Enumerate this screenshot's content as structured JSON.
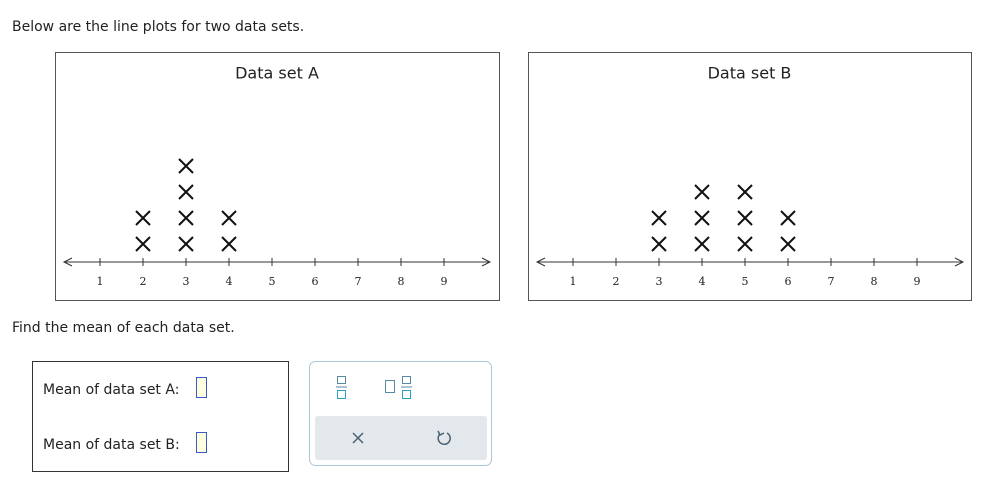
{
  "intro": "Below are the line plots for two data sets.",
  "plots": [
    {
      "title": "Data set A",
      "ticks": [
        1,
        2,
        3,
        4,
        5,
        6,
        7,
        8,
        9
      ],
      "values": [
        2,
        3,
        4
      ],
      "counts": [
        2,
        4,
        2
      ]
    },
    {
      "title": "Data set B",
      "ticks": [
        1,
        2,
        3,
        4,
        5,
        6,
        7,
        8,
        9
      ],
      "values": [
        3,
        4,
        5,
        6
      ],
      "counts": [
        2,
        3,
        3,
        2
      ]
    }
  ],
  "question": "Find the mean of each data set.",
  "answers": [
    {
      "label": "Mean of data set A:"
    },
    {
      "label": "Mean of data set B:"
    }
  ]
}
